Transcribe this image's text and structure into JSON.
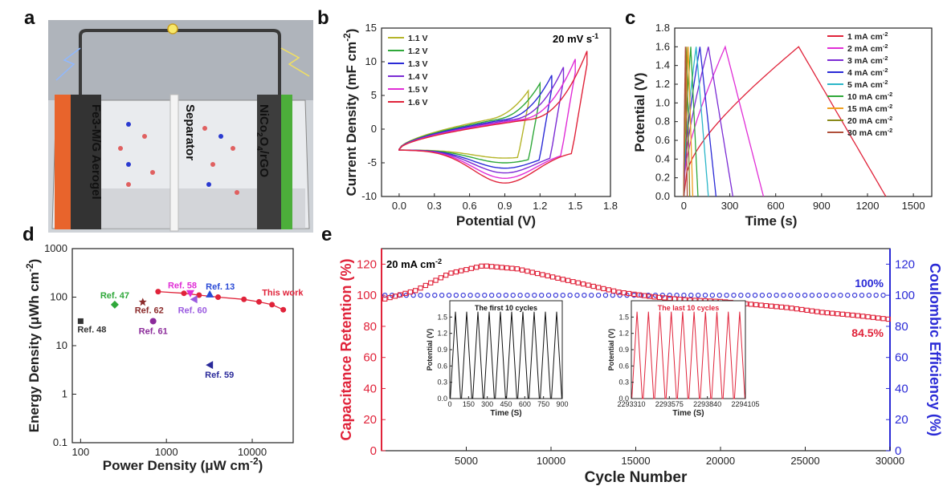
{
  "panels": {
    "a": "a",
    "b": "b",
    "c": "c",
    "d": "d",
    "e": "e"
  },
  "schematic": {
    "left_electrode": "Fe3-M/G Aerogel",
    "separator": "Separator",
    "right_electrode_prefix": "NiCo",
    "right_electrode_sub1": "2",
    "right_electrode_mid": "O",
    "right_electrode_sub2": "4",
    "right_electrode_suffix": "/rGO",
    "colors": {
      "left": "#e8642c",
      "right": "#4cae3a",
      "wire": "#3a3a3a"
    }
  },
  "chart_data": [
    {
      "id": "b",
      "type": "line",
      "title": "20 mV s",
      "title_sup": "-1",
      "xlabel": "Potential (V)",
      "ylabel": "Current Density (mF cm",
      "ylabel_sup": "-2",
      "ylabel_end": ")",
      "xlim": [
        -0.15,
        1.8
      ],
      "ylim": [
        -10,
        15
      ],
      "xticks": [
        "0.0",
        "0.3",
        "0.6",
        "0.9",
        "1.2",
        "1.5",
        "1.8"
      ],
      "xtick_values": [
        0.0,
        0.3,
        0.6,
        0.9,
        1.2,
        1.5,
        1.8
      ],
      "yticks": [
        "-10",
        "-5",
        "0",
        "5",
        "10",
        "15"
      ],
      "ytick_values": [
        -10,
        -5,
        0,
        5,
        10,
        15
      ],
      "series": [
        {
          "name": "1.1 V",
          "vmax": 1.1,
          "imax": 5.7,
          "imin": -4.3,
          "color": "#b5b52a"
        },
        {
          "name": "1.2 V",
          "vmax": 1.2,
          "imax": 6.8,
          "imin": -5.0,
          "color": "#2fa83a"
        },
        {
          "name": "1.3 V",
          "vmax": 1.3,
          "imax": 8.0,
          "imin": -5.8,
          "color": "#2a2ad6"
        },
        {
          "name": "1.4 V",
          "vmax": 1.4,
          "imax": 9.2,
          "imin": -6.5,
          "color": "#7b2bd4"
        },
        {
          "name": "1.5 V",
          "vmax": 1.5,
          "imax": 10.4,
          "imin": -7.3,
          "color": "#e02ed6"
        },
        {
          "name": "1.6 V",
          "vmax": 1.6,
          "imax": 11.6,
          "imin": -8.0,
          "color": "#e0233a"
        }
      ]
    },
    {
      "id": "c",
      "type": "line",
      "xlabel": "Time (s)",
      "ylabel": "Potential (V)",
      "xlim": [
        -60,
        1620
      ],
      "ylim": [
        0,
        1.8
      ],
      "xticks": [
        "0",
        "300",
        "600",
        "900",
        "1200",
        "1500"
      ],
      "xtick_values": [
        0,
        300,
        600,
        900,
        1200,
        1500
      ],
      "yticks": [
        "0.0",
        "0.2",
        "0.4",
        "0.6",
        "0.8",
        "1.0",
        "1.2",
        "1.4",
        "1.6",
        "1.8"
      ],
      "ytick_values": [
        0,
        0.2,
        0.4,
        0.6,
        0.8,
        1.0,
        1.2,
        1.4,
        1.6,
        1.8
      ],
      "legend_unit": "cm",
      "legend_sup": "-2",
      "series": [
        {
          "name": "1 mA",
          "t_charge": 750,
          "t_end": 1320,
          "color": "#e0233a"
        },
        {
          "name": "2 mA",
          "t_charge": 270,
          "t_end": 520,
          "color": "#e02ed6"
        },
        {
          "name": "3 mA",
          "t_charge": 160,
          "t_end": 320,
          "color": "#7b2bd4"
        },
        {
          "name": "4 mA",
          "t_charge": 105,
          "t_end": 210,
          "color": "#2a2ad6"
        },
        {
          "name": "5 mA",
          "t_charge": 80,
          "t_end": 160,
          "color": "#2ab6c8"
        },
        {
          "name": "10 mA",
          "t_charge": 45,
          "t_end": 92,
          "color": "#2fa83a"
        },
        {
          "name": "15 mA",
          "t_charge": 28,
          "t_end": 58,
          "color": "#f0a020"
        },
        {
          "name": "20 mA",
          "t_charge": 18,
          "t_end": 38,
          "color": "#8a8a1a"
        },
        {
          "name": "30 mA",
          "t_charge": 10,
          "t_end": 22,
          "color": "#b0503a"
        }
      ]
    },
    {
      "id": "d",
      "type": "scatter",
      "xlabel": "Power Density (μW cm",
      "xlabel_sup": "-2",
      "xlabel_end": ")",
      "ylabel": "Energy Density (μWh cm",
      "ylabel_sup": "-2",
      "ylabel_end": ")",
      "xscale": "log",
      "yscale": "log",
      "xlim": [
        80,
        30000
      ],
      "ylim": [
        0.1,
        1000
      ],
      "xticks": [
        "100",
        "1000",
        "10000"
      ],
      "xtick_values": [
        100,
        1000,
        10000
      ],
      "yticks": [
        "0.1",
        "1",
        "10",
        "100",
        "1000"
      ],
      "ytick_values": [
        0.1,
        1,
        10,
        100,
        1000
      ],
      "this_work": {
        "label": "This work",
        "color": "#e0233a",
        "points": [
          [
            800,
            130
          ],
          [
            1600,
            120
          ],
          [
            2400,
            110
          ],
          [
            4000,
            100
          ],
          [
            8000,
            90
          ],
          [
            12000,
            80
          ],
          [
            17000,
            70
          ],
          [
            23000,
            55
          ]
        ]
      },
      "refs": [
        {
          "label": "Ref. 47",
          "x": 250,
          "y": 70,
          "color": "#2fa83a",
          "marker": "diamond"
        },
        {
          "label": "Ref. 48",
          "x": 100,
          "y": 32,
          "color": "#333333",
          "marker": "square"
        },
        {
          "label": "Ref. 62",
          "x": 530,
          "y": 80,
          "color": "#8b2a2a",
          "marker": "star"
        },
        {
          "label": "Ref. 61",
          "x": 700,
          "y": 32,
          "color": "#8b2a9a",
          "marker": "circle"
        },
        {
          "label": "Ref. 58",
          "x": 1900,
          "y": 120,
          "color": "#e02ed6",
          "marker": "triangle-down"
        },
        {
          "label": "Ref. 60",
          "x": 2100,
          "y": 90,
          "color": "#9b5be0",
          "marker": "triangle-left"
        },
        {
          "label": "Ref. 13",
          "x": 3200,
          "y": 115,
          "color": "#2a4ad6",
          "marker": "triangle-up"
        },
        {
          "label": "Ref. 59",
          "x": 3200,
          "y": 4,
          "color": "#2a2a9a",
          "marker": "triangle-left"
        }
      ]
    },
    {
      "id": "e",
      "type": "scatter",
      "xlabel": "Cycle Number",
      "ylabel_left": "Capacitance Retention (%)",
      "ylabel_right": "Coulombic Efficiency (%)",
      "xlim": [
        0,
        30000
      ],
      "ylim_left": [
        0,
        130
      ],
      "ylim_right": [
        0,
        130
      ],
      "xticks": [
        "5000",
        "10000",
        "15000",
        "20000",
        "25000",
        "30000"
      ],
      "xtick_values": [
        5000,
        10000,
        15000,
        20000,
        25000,
        30000
      ],
      "yticks_left": [
        "0",
        "20",
        "40",
        "60",
        "80",
        "100",
        "120"
      ],
      "yticks_right": [
        "0",
        "20",
        "40",
        "60",
        "80",
        "100",
        "120"
      ],
      "ytick_values": [
        0,
        20,
        40,
        60,
        80,
        100,
        120
      ],
      "current_label": "20 mA cm",
      "current_sup": "-2",
      "final_retention": "84.5%",
      "final_efficiency": "100%",
      "retention_color": "#e0233a",
      "efficiency_color": "#2a2ad6",
      "retention_keypoints": [
        [
          0,
          97
        ],
        [
          2000,
          103
        ],
        [
          4000,
          114
        ],
        [
          6000,
          119
        ],
        [
          8000,
          117
        ],
        [
          10000,
          112
        ],
        [
          12000,
          107
        ],
        [
          14000,
          102
        ],
        [
          16000,
          99
        ],
        [
          18000,
          97
        ],
        [
          20000,
          96
        ],
        [
          22000,
          94
        ],
        [
          24000,
          92
        ],
        [
          26000,
          89
        ],
        [
          28000,
          87
        ],
        [
          30000,
          84.5
        ]
      ],
      "efficiency_value": 100,
      "insets": [
        {
          "title": "The first 10 cycles",
          "xlabel": "Time (S)",
          "ylabel": "Potential (V)",
          "color": "#111111",
          "xticks": [
            "0",
            "150",
            "300",
            "450",
            "600",
            "750",
            "900"
          ],
          "yticks": [
            "0.0",
            "0.3",
            "0.6",
            "0.9",
            "1.2",
            "1.5"
          ],
          "cycles": 10,
          "vmax": 1.6
        },
        {
          "title": "The last 10 cycles",
          "xlabel": "Time (S)",
          "ylabel": "Potential (V)",
          "color": "#e0233a",
          "xticks": [
            "2293310",
            "2293575",
            "2293840",
            "2294105"
          ],
          "yticks": [
            "0.0",
            "0.3",
            "0.6",
            "0.9",
            "1.2",
            "1.5"
          ],
          "cycles": 10,
          "vmax": 1.6
        }
      ]
    }
  ]
}
